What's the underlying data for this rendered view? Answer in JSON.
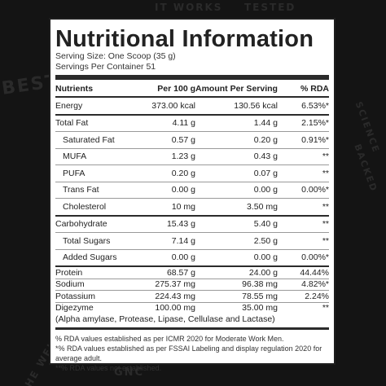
{
  "background_marks": [
    "BEST",
    "GNC",
    "SCIENCE",
    "BACKED",
    "IT WORKS",
    "TESTED",
    "THE WELL"
  ],
  "label": {
    "title": "Nutritional Information",
    "serving_size": "Serving Size: One Scoop (35 g)",
    "servings_per_container": "Servings Per Container 51"
  },
  "table": {
    "headers": [
      "Nutrients",
      "Per 100 g",
      "Amount Per Serving",
      "% RDA"
    ],
    "rows": [
      {
        "nutrient": "Energy",
        "per100": "373.00 kcal",
        "serving": "130.56 kcal",
        "rda": "6.53%*"
      },
      {
        "nutrient": "Total Fat",
        "per100": "4.11 g",
        "serving": "1.44 g",
        "rda": "2.15%*"
      },
      {
        "nutrient": "Saturated Fat",
        "per100": "0.57 g",
        "serving": "0.20 g",
        "rda": "0.91%*"
      },
      {
        "nutrient": "MUFA",
        "per100": "1.23 g",
        "serving": "0.43 g",
        "rda": "**"
      },
      {
        "nutrient": "PUFA",
        "per100": "0.20 g",
        "serving": "0.07 g",
        "rda": "**"
      },
      {
        "nutrient": "Trans Fat",
        "per100": "0.00 g",
        "serving": "0.00 g",
        "rda": "0.00%*"
      },
      {
        "nutrient": "Cholesterol",
        "per100": "10 mg",
        "serving": "3.50 mg",
        "rda": "**"
      },
      {
        "nutrient": "Carbohydrate",
        "per100": "15.43 g",
        "serving": "5.40 g",
        "rda": "**"
      },
      {
        "nutrient": "Total Sugars",
        "per100": "7.14 g",
        "serving": "2.50 g",
        "rda": "**"
      },
      {
        "nutrient": "Added Sugars",
        "per100": "0.00 g",
        "serving": "0.00 g",
        "rda": "0.00%*"
      },
      {
        "nutrient": "Protein",
        "per100": "68.57 g",
        "serving": "24.00 g",
        "rda": "44.44%"
      },
      {
        "nutrient": "Sodium",
        "per100": "275.37 mg",
        "serving": "96.38 mg",
        "rda": "4.82%*"
      },
      {
        "nutrient": "Potassium",
        "per100": "224.43 mg",
        "serving": "78.55 mg",
        "rda": "2.24%"
      },
      {
        "nutrient": "Digezyme",
        "per100": "100.00 mg",
        "serving": "35.00 mg",
        "rda": "**"
      }
    ],
    "digezyme_note": "(Alpha amylase, Protease, Lipase, Cellulase and Lactase)"
  },
  "footnotes": [
    "% RDA values established as per ICMR 2020 for Moderate Work Men.",
    "*% RDA values established as per FSSAI Labeling and display regulation 2020 for average adult.",
    "**% RDA values not established."
  ]
}
